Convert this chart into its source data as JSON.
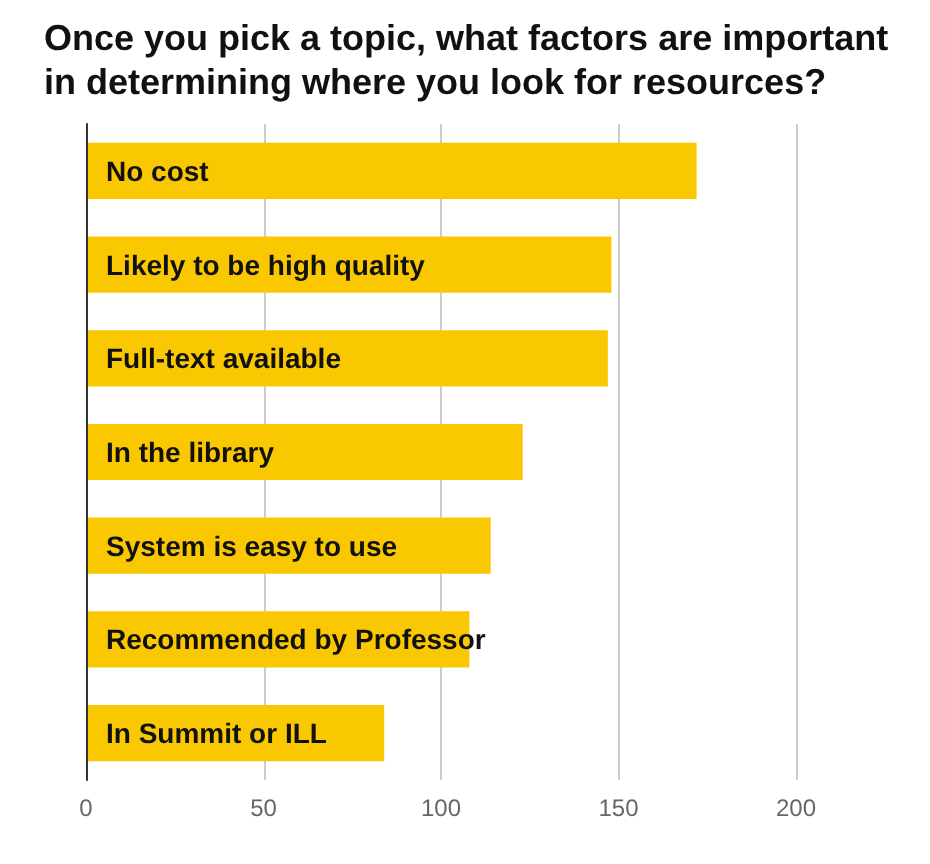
{
  "chart_data": {
    "type": "bar",
    "orientation": "horizontal",
    "title": "Once you pick a topic, what factors are important in determining where you look for resources?",
    "categories": [
      "No cost",
      "Likely to be high quality",
      "Full-text available",
      "In the library",
      "System is easy to use",
      "Recommended by Professor",
      "In Summit or ILL"
    ],
    "values": [
      172,
      148,
      147,
      123,
      114,
      108,
      84
    ],
    "color": "#fac800",
    "xlim": [
      0,
      200
    ],
    "xticks": [
      0,
      50,
      100,
      150,
      200
    ],
    "grid": "x"
  }
}
